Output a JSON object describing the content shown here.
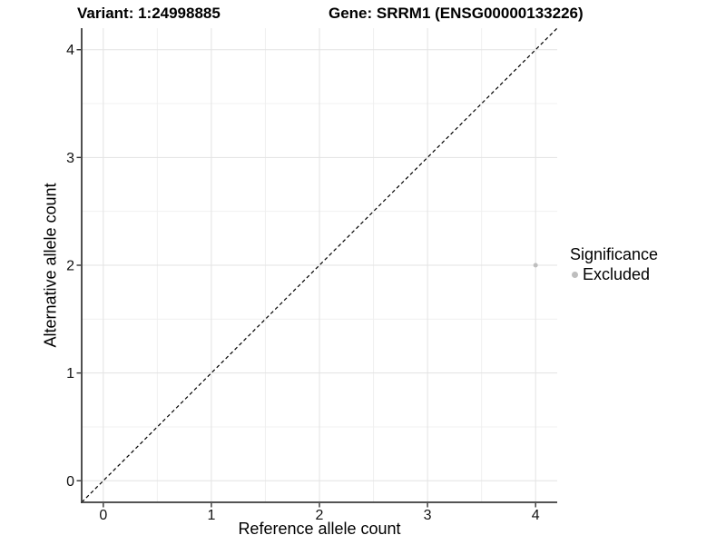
{
  "chart_data": {
    "type": "scatter",
    "titles": [
      "Variant: 1:24998885",
      "Gene: SRRM1 (ENSG00000133226)"
    ],
    "xlabel": "Reference allele count",
    "ylabel": "Alternative allele count",
    "xlim": [
      -0.2,
      4.2
    ],
    "ylim": [
      -0.2,
      4.2
    ],
    "x_ticks": [
      0,
      1,
      2,
      3,
      4
    ],
    "y_ticks": [
      0,
      1,
      2,
      3,
      4
    ],
    "minor_step": 0.5,
    "grid": "major+minor",
    "points": [
      {
        "x": 4,
        "y": 2,
        "series": "Excluded"
      }
    ],
    "reference_line": {
      "type": "identity",
      "slope": 1,
      "intercept": 0,
      "style": "dashed",
      "color": "#000000"
    },
    "legend": {
      "title": "Significance",
      "position": "right",
      "items": [
        {
          "label": "Excluded",
          "color": "#bebebe"
        }
      ]
    },
    "colors": {
      "background": "#ffffff",
      "point": "#bebebe",
      "grid_major": "#e3e3e3",
      "grid_minor": "#f0f0f0",
      "axis_line": "#3c3c3c",
      "tick_mark": "#333333",
      "tick_label": "#111111"
    }
  }
}
